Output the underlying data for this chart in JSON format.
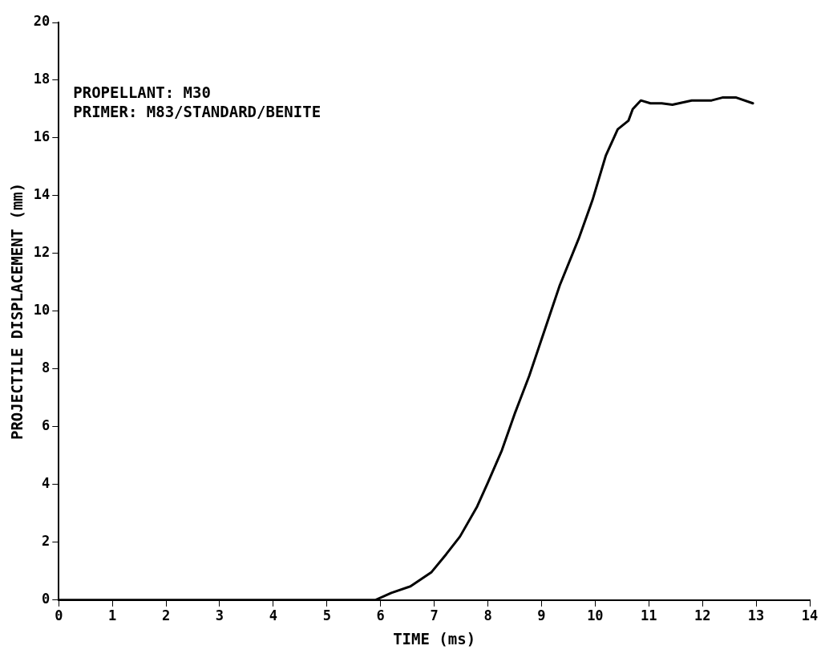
{
  "chart_data": {
    "type": "line",
    "xlabel": "TIME (ms)",
    "ylabel": "PROJECTILE DISPLACEMENT (mm)",
    "annotations": [
      "PROPELLANT: M30",
      "PRIMER: M83/STANDARD/BENITE"
    ],
    "xlim": [
      0,
      14
    ],
    "xticks": [
      0,
      1,
      2,
      3,
      4,
      5,
      6,
      7,
      8,
      9,
      10,
      11,
      12,
      13,
      14
    ],
    "ylim": [
      0,
      20
    ],
    "yticks": [
      0,
      2,
      4,
      6,
      8,
      10,
      12,
      14,
      16,
      18,
      20
    ],
    "grid": false,
    "legend": false,
    "marker": "none",
    "line_style": "solid",
    "series": [
      {
        "color": "#000000",
        "x": [
          0,
          5.9,
          6.2,
          6.55,
          6.95,
          7.22,
          7.48,
          7.8,
          8.0,
          8.26,
          8.51,
          8.77,
          9.05,
          9.34,
          9.69,
          9.95,
          10.2,
          10.42,
          10.62,
          10.7,
          10.85,
          11.03,
          11.24,
          11.44,
          11.8,
          12.17,
          12.37,
          12.63,
          12.94
        ],
        "values": [
          0,
          0,
          0.25,
          0.47,
          0.97,
          1.58,
          2.2,
          3.24,
          4.07,
          5.18,
          6.5,
          7.76,
          9.3,
          10.9,
          12.5,
          13.85,
          15.4,
          16.3,
          16.6,
          17.0,
          17.3,
          17.2,
          17.2,
          17.15,
          17.3,
          17.3,
          17.4,
          17.4,
          17.2
        ]
      }
    ]
  }
}
